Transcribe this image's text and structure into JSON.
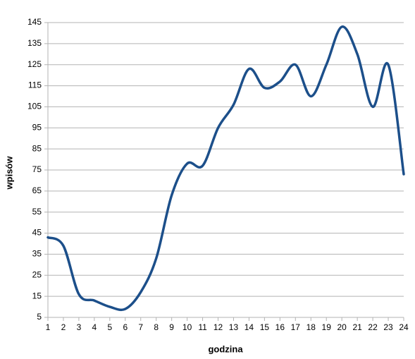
{
  "chart_data": {
    "type": "line",
    "x_label": "godzina",
    "y_label": "wpisów",
    "x": [
      1,
      2,
      3,
      4,
      5,
      6,
      7,
      8,
      9,
      10,
      11,
      12,
      13,
      14,
      15,
      16,
      17,
      18,
      19,
      20,
      21,
      22,
      23,
      24
    ],
    "series": [
      {
        "color": "#1c4f8a",
        "values": [
          43,
          39,
          16,
          13,
          10,
          9,
          17,
          33,
          63,
          78,
          77,
          95,
          106,
          123,
          114,
          117,
          125,
          110,
          125,
          143,
          130,
          105,
          125,
          73
        ]
      }
    ],
    "xlim": [
      1,
      24
    ],
    "xticks": [
      1,
      2,
      3,
      4,
      5,
      6,
      7,
      8,
      9,
      10,
      11,
      12,
      13,
      14,
      15,
      16,
      17,
      18,
      19,
      20,
      21,
      22,
      23,
      24
    ],
    "ylim": [
      5,
      145
    ],
    "yticks": [
      5,
      15,
      25,
      35,
      45,
      55,
      65,
      75,
      85,
      95,
      105,
      115,
      125,
      135,
      145
    ],
    "grid": true,
    "smooth": true
  }
}
